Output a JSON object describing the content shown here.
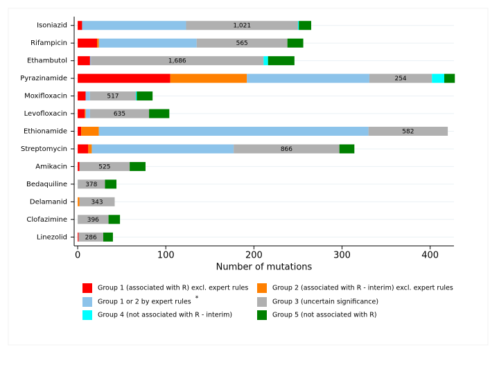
{
  "chart_data": {
    "type": "stacked-barh",
    "x_label": "Number of mutations",
    "categories": [
      "Isoniazid",
      "Rifampicin",
      "Ethambutol",
      "Pyrazinamide",
      "Moxifloxacin",
      "Levofloxacin",
      "Ethionamide",
      "Streptomycin",
      "Amikacin",
      "Bedaquiline",
      "Delamanid",
      "Clofazimine",
      "Linezolid"
    ],
    "series": [
      {
        "name": "Group 1 (associated with R) excl. expert rules",
        "color": "#ff0000",
        "values": [
          5,
          22,
          14,
          105,
          9,
          8,
          4,
          12,
          2,
          0,
          0,
          0,
          1
        ]
      },
      {
        "name": "Group 2 (associated with R - interim) excl. expert rules",
        "color": "#ff8000",
        "values": [
          0,
          2,
          0,
          87,
          0,
          1,
          20,
          4,
          0,
          0,
          2,
          0,
          0
        ]
      },
      {
        "name": "Group 1 or 2 by expert rules",
        "color": "#8cc3ea",
        "values": [
          118,
          111,
          1,
          139,
          5,
          5,
          306,
          161,
          0,
          0,
          0,
          0,
          0
        ]
      },
      {
        "name": "Group 3 (uncertain significance)",
        "color": "#b0b0b0",
        "values": [
          127,
          103,
          196,
          71,
          52,
          67,
          90,
          120,
          57,
          31,
          40,
          35,
          28
        ]
      },
      {
        "name": "Group 4 (not associated with R - interim)",
        "color": "#00ffff",
        "values": [
          1,
          0,
          5,
          14,
          1,
          0,
          0,
          0,
          0,
          0,
          0,
          0,
          0
        ]
      },
      {
        "name": "Group 5 (not associated with R)",
        "color": "#008000",
        "values": [
          14,
          18,
          30,
          12,
          18,
          23,
          0,
          17,
          18,
          13,
          0,
          13,
          11
        ]
      }
    ],
    "group3_labels": [
      "1,021",
      "565",
      "1,686",
      "254",
      "517",
      "635",
      "582",
      "866",
      "525",
      "378",
      "343",
      "396",
      "286"
    ],
    "note_marker": "*",
    "xlim": [
      -4,
      427
    ],
    "xticks": [
      0,
      100,
      200,
      300,
      400
    ],
    "grid": true
  }
}
